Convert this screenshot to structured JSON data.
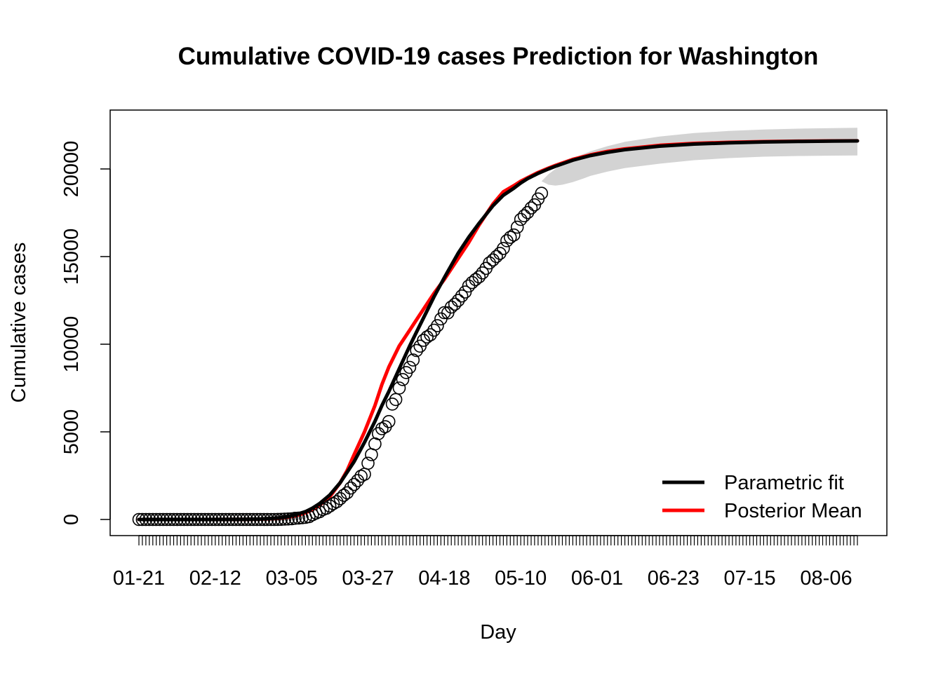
{
  "chart_data": {
    "type": "line",
    "title": "Cumulative COVID-19 cases Prediction for Washington",
    "xlabel": "Day",
    "ylabel": "Cumulative cases",
    "x_ticks": [
      "01-21",
      "02-12",
      "03-05",
      "03-27",
      "04-18",
      "05-10",
      "06-01",
      "06-23",
      "07-15",
      "08-06"
    ],
    "y_ticks": [
      0,
      5000,
      10000,
      15000,
      20000
    ],
    "x_range_days": [
      0,
      207
    ],
    "ylim": [
      -900,
      23300
    ],
    "legend": {
      "position": "bottom-right",
      "entries": [
        {
          "label": "Parametric fit",
          "color": "#000000"
        },
        {
          "label": "Posterior Mean",
          "color": "#ff0000"
        }
      ]
    },
    "series": [
      {
        "name": "Parametric fit",
        "kind": "line",
        "color": "#000000",
        "x_days": [
          0,
          10,
          20,
          30,
          35,
          40,
          42,
          45,
          48,
          50,
          52,
          55,
          58,
          60,
          62,
          65,
          68,
          70,
          72,
          75,
          78,
          80,
          82,
          85,
          88,
          90,
          92,
          95,
          98,
          100,
          102,
          105,
          108,
          110,
          112,
          115,
          118,
          120,
          125,
          130,
          135,
          140,
          150,
          160,
          170,
          180,
          190,
          200,
          207
        ],
        "y": [
          0,
          0,
          0,
          10,
          30,
          90,
          140,
          260,
          450,
          650,
          900,
          1400,
          2100,
          2700,
          3300,
          4400,
          5600,
          6500,
          7300,
          8600,
          9900,
          10700,
          11500,
          12700,
          13800,
          14500,
          15200,
          16100,
          16900,
          17400,
          17900,
          18500,
          18900,
          19200,
          19450,
          19750,
          20000,
          20150,
          20500,
          20760,
          20950,
          21100,
          21300,
          21420,
          21490,
          21540,
          21570,
          21590,
          21600
        ]
      },
      {
        "name": "Posterior Mean",
        "kind": "line",
        "color": "#ff0000",
        "x_days": [
          0,
          10,
          20,
          30,
          35,
          40,
          42,
          45,
          48,
          50,
          52,
          55,
          58,
          60,
          62,
          65,
          68,
          70,
          72,
          75,
          78,
          80,
          82,
          85,
          88,
          90,
          92,
          95,
          98,
          100,
          102,
          105,
          108,
          110,
          112,
          115,
          118,
          120,
          125,
          130,
          135,
          140,
          150,
          160,
          170,
          180,
          190,
          200,
          207
        ],
        "y": [
          0,
          0,
          0,
          5,
          20,
          60,
          100,
          200,
          380,
          560,
          800,
          1300,
          2100,
          2800,
          3700,
          5000,
          6500,
          7700,
          8700,
          9900,
          10800,
          11400,
          12000,
          12900,
          13700,
          14300,
          14900,
          15800,
          16800,
          17400,
          18000,
          18700,
          19050,
          19300,
          19500,
          19800,
          20050,
          20200,
          20550,
          20800,
          21000,
          21150,
          21350,
          21460,
          21520,
          21560,
          21585,
          21600,
          21605
        ]
      },
      {
        "name": "",
        "kind": "band",
        "color": "#d3d3d3",
        "x_days": [
          116,
          118,
          120,
          122,
          125,
          128,
          130,
          135,
          140,
          150,
          160,
          170,
          180,
          190,
          200,
          207
        ],
        "lower": [
          19300,
          19100,
          19050,
          19100,
          19250,
          19450,
          19600,
          19850,
          20050,
          20300,
          20500,
          20620,
          20700,
          20740,
          20760,
          20770
        ],
        "upper": [
          19300,
          19700,
          20000,
          20300,
          20600,
          20850,
          21000,
          21300,
          21550,
          21850,
          22050,
          22170,
          22250,
          22300,
          22330,
          22350
        ]
      },
      {
        "name": "",
        "kind": "points",
        "color": "#000000",
        "x_days": [
          0,
          1,
          2,
          3,
          4,
          5,
          6,
          7,
          8,
          9,
          10,
          11,
          12,
          13,
          14,
          15,
          16,
          17,
          18,
          19,
          20,
          21,
          22,
          23,
          24,
          25,
          26,
          27,
          28,
          29,
          30,
          31,
          32,
          33,
          34,
          35,
          36,
          37,
          38,
          39,
          40,
          41,
          42,
          43,
          44,
          45,
          46,
          47,
          48,
          49,
          50,
          51,
          52,
          53,
          54,
          55,
          56,
          57,
          58,
          59,
          60,
          61,
          62,
          63,
          64,
          65,
          66,
          67,
          68,
          69,
          70,
          71,
          72,
          73,
          74,
          75,
          76,
          77,
          78,
          79,
          80,
          81,
          82,
          83,
          84,
          85,
          86,
          87,
          88,
          89,
          90,
          91,
          92,
          93,
          94,
          95,
          96,
          97,
          98,
          99,
          100,
          101,
          102,
          103,
          104,
          105,
          106,
          107,
          108,
          109,
          110,
          111,
          112,
          113,
          114,
          115,
          116
        ],
        "y": [
          0,
          0,
          0,
          0,
          0,
          0,
          0,
          0,
          0,
          0,
          0,
          0,
          0,
          0,
          0,
          0,
          0,
          0,
          0,
          0,
          0,
          0,
          0,
          0,
          0,
          0,
          0,
          0,
          0,
          0,
          0,
          0,
          0,
          0,
          0,
          0,
          0,
          0,
          0,
          2,
          6,
          10,
          18,
          27,
          39,
          70,
          79,
          102,
          122,
          162,
          267,
          366,
          442,
          568,
          642,
          769,
          904,
          1012,
          1187,
          1376,
          1524,
          1793,
          1996,
          2221,
          2469,
          2580,
          3207,
          3700,
          4310,
          4896,
          5179,
          5292,
          5588,
          6585,
          6846,
          7498,
          7984,
          8384,
          8682,
          9097,
          9639,
          9887,
          10224,
          10411,
          10538,
          10799,
          11057,
          11445,
          11802,
          11790,
          12114,
          12282,
          12494,
          12753,
          12977,
          13319,
          13521,
          13686,
          13842,
          14070,
          14327,
          14637,
          14810,
          15003,
          15185,
          15462,
          15905,
          16096,
          16231,
          16674,
          17121,
          17330,
          17512,
          17773,
          17951,
          18288,
          18611
        ]
      }
    ]
  }
}
